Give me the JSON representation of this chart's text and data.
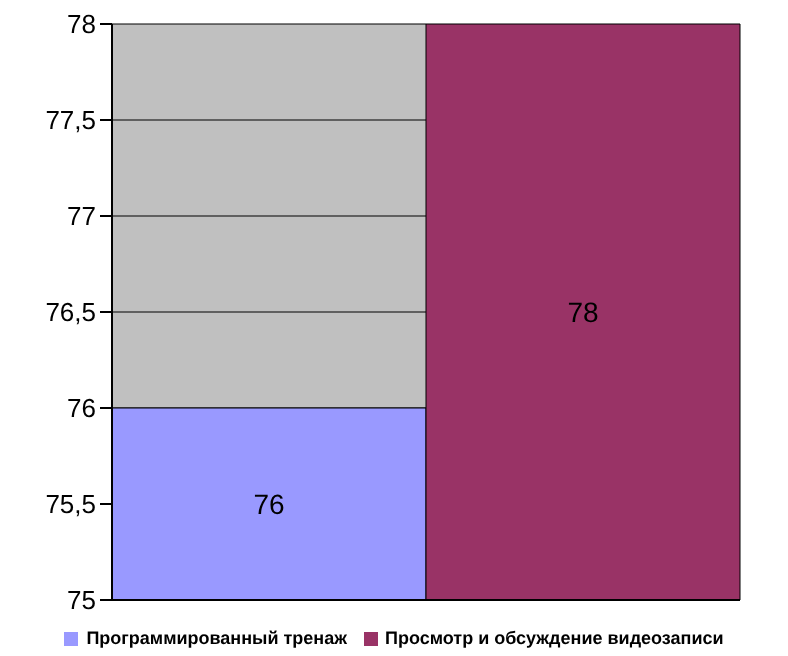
{
  "chart_data": {
    "type": "bar",
    "categories": [
      null
    ],
    "series": [
      {
        "name": "Программированный тренаж",
        "color": "#9999ff",
        "values": [
          76
        ]
      },
      {
        "name": "Просмотр и обсуждение видеозаписи",
        "color": "#993366",
        "values": [
          78
        ]
      }
    ],
    "ylim": [
      75,
      78
    ],
    "yticks": [
      75,
      {
        "value": 75.5,
        "label": "75,5"
      },
      76,
      {
        "value": 76.5,
        "label": "76,5"
      },
      77,
      {
        "value": 77.5,
        "label": "77,5"
      },
      78
    ],
    "grid": "y",
    "legend": "bottom",
    "data_labels": true
  }
}
